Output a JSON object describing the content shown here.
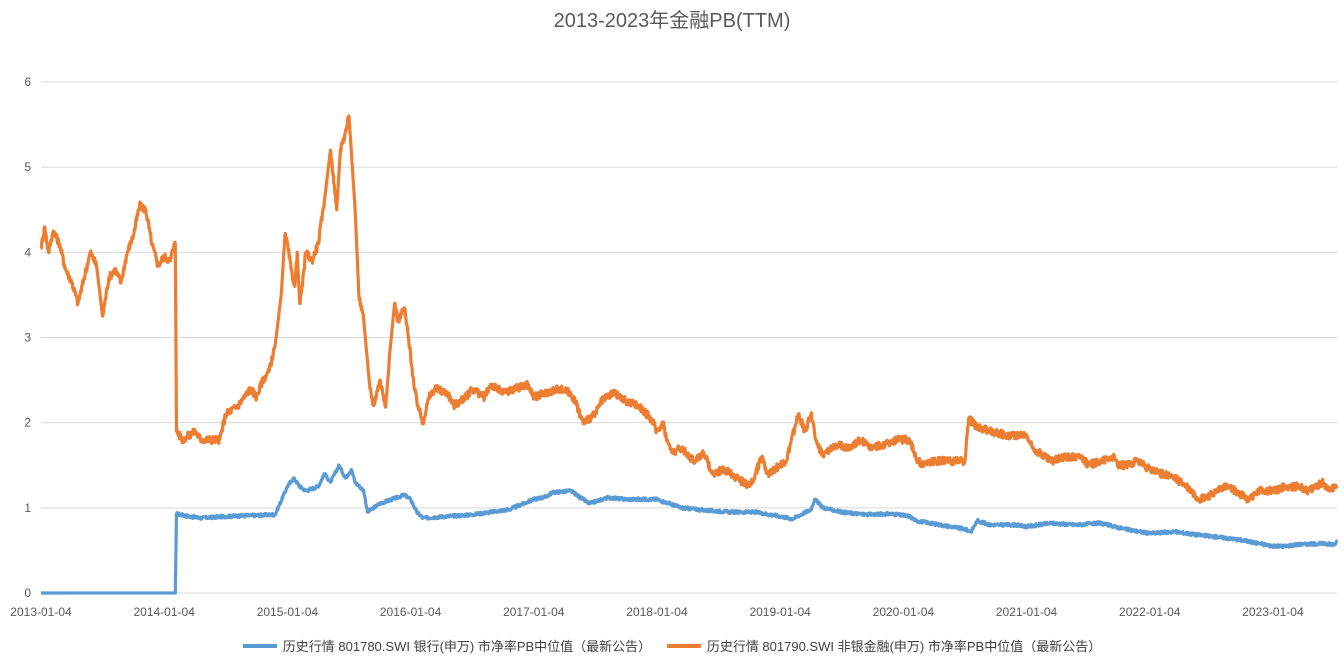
{
  "chart_data": {
    "type": "line",
    "title": "2013-2023年金融PB(TTM)",
    "xlabel": "",
    "ylabel": "",
    "ylim": [
      0,
      6
    ],
    "yticks": [
      "0",
      "1",
      "2",
      "3",
      "4",
      "5",
      "6"
    ],
    "x_tick_labels": [
      "2013-01-04",
      "2014-01-04",
      "2015-01-04",
      "2016-01-04",
      "2017-01-04",
      "2018-01-04",
      "2019-01-04",
      "2020-01-04",
      "2021-01-04",
      "2022-01-04",
      "2023-01-04"
    ],
    "grid": "horizontal",
    "legend_position": "bottom",
    "series": [
      {
        "name": "历史行情 801780.SWI 银行(申万) 市净率PB中位值（最新公告）",
        "color": "#5B9BD5",
        "points": [
          [
            2013.0,
            0.0
          ],
          [
            2014.09,
            0.0
          ],
          [
            2014.1,
            0.93
          ],
          [
            2014.2,
            0.9
          ],
          [
            2014.3,
            0.88
          ],
          [
            2014.5,
            0.9
          ],
          [
            2014.7,
            0.91
          ],
          [
            2014.9,
            0.92
          ],
          [
            2015.0,
            1.25
          ],
          [
            2015.05,
            1.35
          ],
          [
            2015.1,
            1.25
          ],
          [
            2015.15,
            1.2
          ],
          [
            2015.25,
            1.25
          ],
          [
            2015.3,
            1.4
          ],
          [
            2015.35,
            1.3
          ],
          [
            2015.42,
            1.5
          ],
          [
            2015.47,
            1.35
          ],
          [
            2015.52,
            1.45
          ],
          [
            2015.55,
            1.3
          ],
          [
            2015.62,
            1.2
          ],
          [
            2015.65,
            0.95
          ],
          [
            2015.75,
            1.05
          ],
          [
            2015.85,
            1.1
          ],
          [
            2015.95,
            1.15
          ],
          [
            2016.0,
            1.1
          ],
          [
            2016.05,
            0.95
          ],
          [
            2016.1,
            0.88
          ],
          [
            2016.3,
            0.9
          ],
          [
            2016.5,
            0.92
          ],
          [
            2016.8,
            0.98
          ],
          [
            2017.0,
            1.1
          ],
          [
            2017.1,
            1.13
          ],
          [
            2017.15,
            1.18
          ],
          [
            2017.3,
            1.2
          ],
          [
            2017.35,
            1.15
          ],
          [
            2017.45,
            1.05
          ],
          [
            2017.6,
            1.12
          ],
          [
            2017.75,
            1.1
          ],
          [
            2018.0,
            1.1
          ],
          [
            2018.1,
            1.05
          ],
          [
            2018.2,
            1.0
          ],
          [
            2018.4,
            0.97
          ],
          [
            2018.6,
            0.95
          ],
          [
            2018.8,
            0.95
          ],
          [
            2019.0,
            0.9
          ],
          [
            2019.1,
            0.87
          ],
          [
            2019.25,
            0.98
          ],
          [
            2019.28,
            1.1
          ],
          [
            2019.35,
            1.0
          ],
          [
            2019.5,
            0.95
          ],
          [
            2019.7,
            0.92
          ],
          [
            2019.9,
            0.93
          ],
          [
            2020.05,
            0.9
          ],
          [
            2020.1,
            0.85
          ],
          [
            2020.3,
            0.8
          ],
          [
            2020.5,
            0.75
          ],
          [
            2020.55,
            0.72
          ],
          [
            2020.6,
            0.85
          ],
          [
            2020.7,
            0.8
          ],
          [
            2020.9,
            0.8
          ],
          [
            2021.0,
            0.78
          ],
          [
            2021.2,
            0.82
          ],
          [
            2021.4,
            0.8
          ],
          [
            2021.6,
            0.82
          ],
          [
            2021.8,
            0.75
          ],
          [
            2022.0,
            0.7
          ],
          [
            2022.2,
            0.72
          ],
          [
            2022.4,
            0.68
          ],
          [
            2022.6,
            0.65
          ],
          [
            2022.75,
            0.62
          ],
          [
            2023.0,
            0.55
          ],
          [
            2023.1,
            0.55
          ],
          [
            2023.2,
            0.57
          ],
          [
            2023.4,
            0.58
          ],
          [
            2023.5,
            0.57
          ],
          [
            2023.52,
            0.6
          ]
        ]
      },
      {
        "name": "历史行情 801790.SWI 非银金融(申万) 市净率PB中位值（最新公告）",
        "color": "#ED7D31",
        "points": [
          [
            2013.0,
            4.05
          ],
          [
            2013.03,
            4.3
          ],
          [
            2013.06,
            4.0
          ],
          [
            2013.1,
            4.25
          ],
          [
            2013.15,
            4.1
          ],
          [
            2013.2,
            3.8
          ],
          [
            2013.25,
            3.65
          ],
          [
            2013.3,
            3.4
          ],
          [
            2013.35,
            3.7
          ],
          [
            2013.4,
            4.0
          ],
          [
            2013.45,
            3.85
          ],
          [
            2013.5,
            3.25
          ],
          [
            2013.55,
            3.7
          ],
          [
            2013.6,
            3.8
          ],
          [
            2013.65,
            3.65
          ],
          [
            2013.7,
            4.0
          ],
          [
            2013.75,
            4.2
          ],
          [
            2013.8,
            4.55
          ],
          [
            2013.85,
            4.5
          ],
          [
            2013.9,
            4.1
          ],
          [
            2013.95,
            3.85
          ],
          [
            2014.0,
            3.95
          ],
          [
            2014.05,
            3.9
          ],
          [
            2014.08,
            4.1
          ],
          [
            2014.09,
            4.1
          ],
          [
            2014.1,
            1.9
          ],
          [
            2014.15,
            1.8
          ],
          [
            2014.25,
            1.9
          ],
          [
            2014.3,
            1.8
          ],
          [
            2014.45,
            1.8
          ],
          [
            2014.5,
            2.1
          ],
          [
            2014.6,
            2.2
          ],
          [
            2014.7,
            2.4
          ],
          [
            2014.75,
            2.3
          ],
          [
            2014.8,
            2.5
          ],
          [
            2014.85,
            2.6
          ],
          [
            2014.9,
            2.9
          ],
          [
            2014.95,
            3.5
          ],
          [
            2014.98,
            4.2
          ],
          [
            2015.0,
            4.1
          ],
          [
            2015.03,
            3.8
          ],
          [
            2015.06,
            3.6
          ],
          [
            2015.08,
            4.0
          ],
          [
            2015.1,
            3.4
          ],
          [
            2015.12,
            3.6
          ],
          [
            2015.15,
            4.0
          ],
          [
            2015.2,
            3.9
          ],
          [
            2015.25,
            4.1
          ],
          [
            2015.3,
            4.6
          ],
          [
            2015.35,
            5.2
          ],
          [
            2015.38,
            4.8
          ],
          [
            2015.4,
            4.5
          ],
          [
            2015.43,
            5.2
          ],
          [
            2015.47,
            5.4
          ],
          [
            2015.5,
            5.6
          ],
          [
            2015.55,
            4.5
          ],
          [
            2015.58,
            3.5
          ],
          [
            2015.62,
            3.2
          ],
          [
            2015.67,
            2.4
          ],
          [
            2015.7,
            2.2
          ],
          [
            2015.75,
            2.5
          ],
          [
            2015.8,
            2.2
          ],
          [
            2015.83,
            2.8
          ],
          [
            2015.87,
            3.4
          ],
          [
            2015.9,
            3.2
          ],
          [
            2015.95,
            3.35
          ],
          [
            2016.0,
            2.8
          ],
          [
            2016.03,
            2.4
          ],
          [
            2016.06,
            2.2
          ],
          [
            2016.1,
            2.0
          ],
          [
            2016.15,
            2.3
          ],
          [
            2016.2,
            2.4
          ],
          [
            2016.3,
            2.35
          ],
          [
            2016.35,
            2.2
          ],
          [
            2016.45,
            2.3
          ],
          [
            2016.5,
            2.4
          ],
          [
            2016.6,
            2.3
          ],
          [
            2016.65,
            2.45
          ],
          [
            2016.75,
            2.35
          ],
          [
            2016.85,
            2.4
          ],
          [
            2016.95,
            2.45
          ],
          [
            2017.0,
            2.3
          ],
          [
            2017.1,
            2.35
          ],
          [
            2017.2,
            2.4
          ],
          [
            2017.3,
            2.35
          ],
          [
            2017.35,
            2.2
          ],
          [
            2017.4,
            2.0
          ],
          [
            2017.5,
            2.1
          ],
          [
            2017.55,
            2.25
          ],
          [
            2017.65,
            2.35
          ],
          [
            2017.75,
            2.25
          ],
          [
            2017.85,
            2.2
          ],
          [
            2017.95,
            2.05
          ],
          [
            2018.0,
            1.9
          ],
          [
            2018.05,
            2.0
          ],
          [
            2018.08,
            1.8
          ],
          [
            2018.12,
            1.65
          ],
          [
            2018.2,
            1.7
          ],
          [
            2018.3,
            1.55
          ],
          [
            2018.38,
            1.65
          ],
          [
            2018.45,
            1.4
          ],
          [
            2018.55,
            1.45
          ],
          [
            2018.65,
            1.35
          ],
          [
            2018.75,
            1.25
          ],
          [
            2018.8,
            1.4
          ],
          [
            2018.85,
            1.6
          ],
          [
            2018.9,
            1.4
          ],
          [
            2018.95,
            1.45
          ],
          [
            2019.0,
            1.5
          ],
          [
            2019.05,
            1.55
          ],
          [
            2019.12,
            1.95
          ],
          [
            2019.15,
            2.1
          ],
          [
            2019.2,
            1.9
          ],
          [
            2019.25,
            2.1
          ],
          [
            2019.3,
            1.75
          ],
          [
            2019.35,
            1.6
          ],
          [
            2019.45,
            1.75
          ],
          [
            2019.55,
            1.7
          ],
          [
            2019.65,
            1.8
          ],
          [
            2019.75,
            1.7
          ],
          [
            2019.85,
            1.75
          ],
          [
            2019.95,
            1.8
          ],
          [
            2020.05,
            1.8
          ],
          [
            2020.1,
            1.6
          ],
          [
            2020.15,
            1.5
          ],
          [
            2020.25,
            1.55
          ],
          [
            2020.35,
            1.55
          ],
          [
            2020.5,
            1.55
          ],
          [
            2020.53,
            2.05
          ],
          [
            2020.6,
            1.95
          ],
          [
            2020.7,
            1.9
          ],
          [
            2020.85,
            1.85
          ],
          [
            2021.0,
            1.85
          ],
          [
            2021.05,
            1.7
          ],
          [
            2021.1,
            1.65
          ],
          [
            2021.2,
            1.55
          ],
          [
            2021.3,
            1.6
          ],
          [
            2021.45,
            1.6
          ],
          [
            2021.5,
            1.5
          ],
          [
            2021.6,
            1.55
          ],
          [
            2021.7,
            1.6
          ],
          [
            2021.75,
            1.5
          ],
          [
            2021.8,
            1.5
          ],
          [
            2021.9,
            1.55
          ],
          [
            2022.0,
            1.45
          ],
          [
            2022.1,
            1.4
          ],
          [
            2022.2,
            1.35
          ],
          [
            2022.3,
            1.25
          ],
          [
            2022.4,
            1.1
          ],
          [
            2022.5,
            1.15
          ],
          [
            2022.6,
            1.25
          ],
          [
            2022.7,
            1.2
          ],
          [
            2022.8,
            1.1
          ],
          [
            2022.9,
            1.2
          ],
          [
            2023.0,
            1.2
          ],
          [
            2023.1,
            1.25
          ],
          [
            2023.2,
            1.25
          ],
          [
            2023.3,
            1.2
          ],
          [
            2023.4,
            1.3
          ],
          [
            2023.45,
            1.22
          ],
          [
            2023.52,
            1.26
          ]
        ]
      }
    ]
  }
}
